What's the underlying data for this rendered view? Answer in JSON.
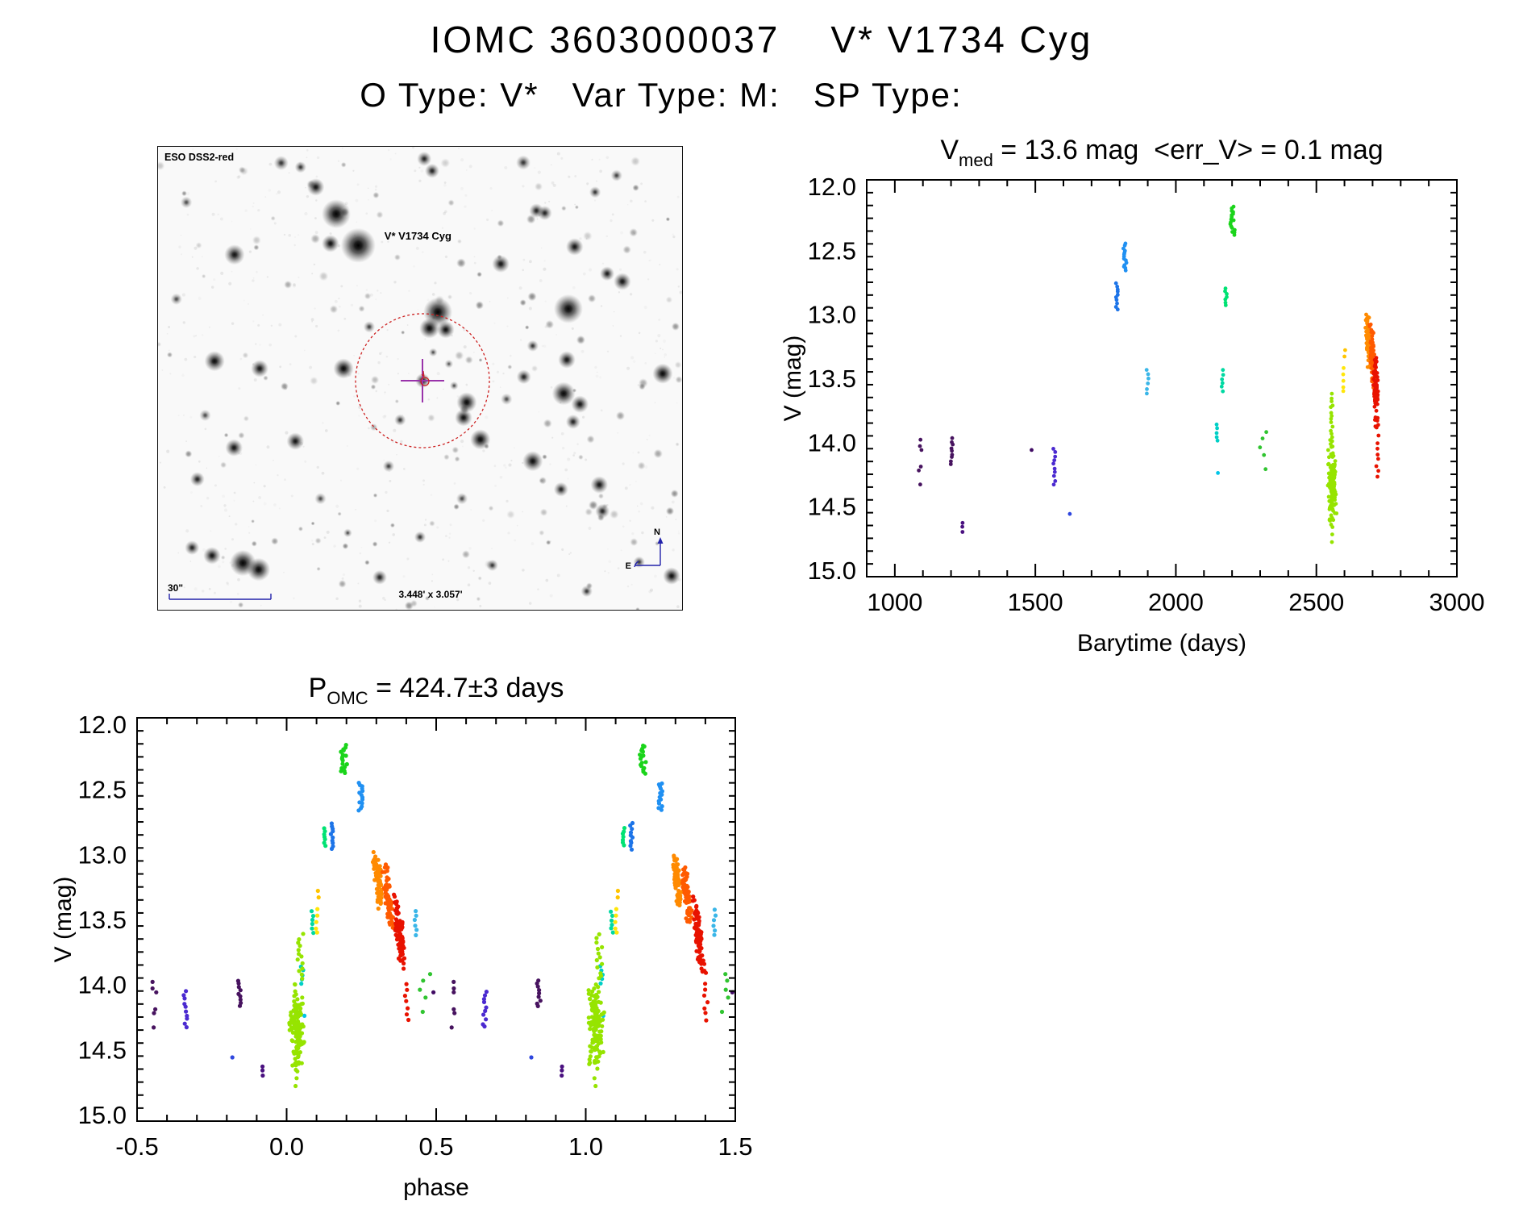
{
  "header": {
    "title": "IOMC 3603000037    V* V1734 Cyg",
    "subtitle": "O Type: V*   Var Type: M:   SP Type:"
  },
  "finder": {
    "survey_label": "ESO DSS2-red",
    "target_label": "V* V1734 Cyg",
    "scalebar_label": "30\"",
    "fov_label": "3.448' x 3.057'",
    "compass_north": "N",
    "compass_east": "E",
    "annotation_color": "#2222aa",
    "target_color": "#cc2020",
    "circle_color": "#cc2020",
    "crosshair_color": "#9933aa",
    "bright_stars": [
      [
        0.34,
        0.145,
        10,
        0.95
      ],
      [
        0.382,
        0.213,
        12,
        1
      ],
      [
        0.329,
        0.209,
        6,
        0.85
      ],
      [
        0.301,
        0.087,
        6,
        0.8
      ],
      [
        0.235,
        0.035,
        5,
        0.6
      ],
      [
        0.272,
        0.044,
        4,
        0.6
      ],
      [
        0.146,
        0.233,
        7,
        0.8
      ],
      [
        0.108,
        0.463,
        7,
        0.85
      ],
      [
        0.194,
        0.479,
        6,
        0.8
      ],
      [
        0.354,
        0.479,
        7,
        0.9
      ],
      [
        0.534,
        0.357,
        10,
        0.95
      ],
      [
        0.518,
        0.392,
        7,
        0.9
      ],
      [
        0.549,
        0.395,
        6,
        0.85
      ],
      [
        0.783,
        0.35,
        10,
        0.9
      ],
      [
        0.589,
        0.552,
        7,
        0.9
      ],
      [
        0.583,
        0.585,
        6,
        0.85
      ],
      [
        0.615,
        0.632,
        7,
        0.9
      ],
      [
        0.715,
        0.43,
        4,
        0.6
      ],
      [
        0.78,
        0.46,
        6,
        0.8
      ],
      [
        0.698,
        0.497,
        5,
        0.7
      ],
      [
        0.963,
        0.49,
        7,
        0.9
      ],
      [
        0.774,
        0.533,
        8,
        0.9
      ],
      [
        0.805,
        0.556,
        6,
        0.8
      ],
      [
        0.792,
        0.594,
        5,
        0.7
      ],
      [
        0.715,
        0.679,
        7,
        0.85
      ],
      [
        0.842,
        0.73,
        6,
        0.8
      ],
      [
        0.769,
        0.74,
        5,
        0.7
      ],
      [
        0.848,
        0.787,
        5,
        0.7
      ],
      [
        0.918,
        0.897,
        4,
        0.6
      ],
      [
        0.98,
        0.927,
        6,
        0.85
      ],
      [
        0.818,
        0.96,
        4,
        0.6
      ],
      [
        0.795,
        0.216,
        6,
        0.8
      ],
      [
        0.834,
        0.098,
        4,
        0.6
      ],
      [
        0.722,
        0.138,
        5,
        0.7
      ],
      [
        0.738,
        0.143,
        5,
        0.7
      ],
      [
        0.654,
        0.253,
        6,
        0.8
      ],
      [
        0.857,
        0.274,
        5,
        0.75
      ],
      [
        0.886,
        0.291,
        6,
        0.8
      ],
      [
        0.697,
        0.034,
        5,
        0.6
      ],
      [
        0.508,
        0.026,
        5,
        0.7
      ],
      [
        0.523,
        0.052,
        5,
        0.7
      ],
      [
        0.162,
        0.899,
        9,
        0.95
      ],
      [
        0.192,
        0.913,
        8,
        0.9
      ],
      [
        0.103,
        0.883,
        6,
        0.8
      ],
      [
        0.065,
        0.866,
        5,
        0.7
      ],
      [
        0.262,
        0.636,
        6,
        0.8
      ],
      [
        0.145,
        0.65,
        6,
        0.8
      ],
      [
        0.075,
        0.718,
        5,
        0.7
      ],
      [
        0.423,
        0.93,
        5,
        0.7
      ],
      [
        0.638,
        0.904,
        4,
        0.6
      ],
      [
        0.5,
        0.843,
        4,
        0.6
      ],
      [
        0.362,
        0.834,
        3,
        0.5
      ],
      [
        0.505,
        0.505,
        5,
        0.8
      ],
      [
        0.525,
        0.444,
        3,
        0.5
      ],
      [
        0.555,
        0.469,
        3,
        0.45
      ],
      [
        0.462,
        0.59,
        4,
        0.6
      ],
      [
        0.565,
        0.516,
        3,
        0.5
      ],
      [
        0.054,
        0.12,
        4,
        0.5
      ],
      [
        0.035,
        0.329,
        4,
        0.5
      ],
      [
        0.403,
        0.389,
        4,
        0.55
      ],
      [
        0.875,
        0.062,
        4,
        0.55
      ],
      [
        0.665,
        0.545,
        4,
        0.5
      ],
      [
        0.44,
        0.69,
        4,
        0.55
      ],
      [
        0.58,
        0.76,
        4,
        0.5
      ],
      [
        0.31,
        0.76,
        4,
        0.5
      ],
      [
        0.09,
        0.58,
        4,
        0.5
      ]
    ]
  },
  "chart_data": [
    {
      "type": "scatter",
      "id": "light_curve",
      "title": {
        "lead": "V",
        "sub": "med",
        "rest": " = 13.6 mag  <err_V> = 0.1 mag"
      },
      "xlabel": "Barytime (days)",
      "ylabel": "V (mag)",
      "xlim": [
        900,
        3000
      ],
      "ylim": [
        11.95,
        15.05
      ],
      "y_axis_inverted_magnitudes": true,
      "xticks": [
        1000,
        1500,
        2000,
        2500,
        3000
      ],
      "xtick_labels": [
        "1000",
        "1500",
        "2000",
        "2500",
        "3000"
      ],
      "yticks": [
        12.0,
        12.5,
        13.0,
        13.5,
        14.0,
        14.5,
        15.0
      ],
      "ytick_labels": [
        "12.0",
        "12.5",
        "13.0",
        "13.5",
        "14.0",
        "14.5",
        "15.0"
      ],
      "x_minor_step": 100,
      "y_minor_step": 0.1,
      "grid": false,
      "legend": "none",
      "series_key": "epochs",
      "x_field": "time"
    },
    {
      "type": "scatter",
      "id": "phase_curve",
      "title": {
        "lead": "P",
        "sub": "OMC",
        "rest": " = 424.7±3 days"
      },
      "xlabel": "phase",
      "ylabel": "V (mag)",
      "xlim": [
        -0.5,
        1.5
      ],
      "ylim": [
        11.95,
        15.05
      ],
      "y_axis_inverted_magnitudes": true,
      "xticks": [
        -0.5,
        0.0,
        0.5,
        1.0,
        1.5
      ],
      "xtick_labels": [
        "-0.5",
        "0.0",
        "0.5",
        "1.0",
        "1.5"
      ],
      "yticks": [
        12.0,
        12.5,
        13.0,
        13.5,
        14.0,
        14.5,
        15.0
      ],
      "ytick_labels": [
        "12.0",
        "12.5",
        "13.0",
        "13.5",
        "14.0",
        "14.5",
        "15.0"
      ],
      "x_minor_step": 0.1,
      "y_minor_step": 0.1,
      "grid": false,
      "legend": "none",
      "series_key": "epochs",
      "x_field": "phase",
      "phase_copies": [
        -1,
        0,
        1
      ]
    }
  ],
  "epochs": [
    {
      "time": 1090,
      "phase": 0.558,
      "color": "#47135f",
      "mags": [
        13.98,
        14.03,
        14.06,
        14.19,
        14.22,
        14.33
      ],
      "tw": 14,
      "pw": 0.02
    },
    {
      "time": 1203,
      "phase": 0.843,
      "color": "#47135f",
      "range": [
        13.97,
        14.17
      ],
      "n": 9,
      "tw": 8,
      "pw": 0.012
    },
    {
      "time": 1242,
      "phase": 0.922,
      "color": "#4a1180",
      "mags": [
        14.63,
        14.66,
        14.7
      ],
      "tw": 4,
      "pw": 0.007
    },
    {
      "time": 1486,
      "phase": 0.49,
      "color": "#400b63",
      "mags": [
        14.06
      ],
      "tw": 2,
      "pw": 0.004
    },
    {
      "time": 1568,
      "phase": 0.662,
      "color": "#4b2ad0",
      "range": [
        14.05,
        14.33
      ],
      "n": 10,
      "tw": 8,
      "pw": 0.013
    },
    {
      "time": 1623,
      "phase": 0.818,
      "color": "#2e46de",
      "mags": [
        14.56
      ],
      "tw": 2,
      "pw": 0.004
    },
    {
      "time": 1790,
      "phase": 0.152,
      "color": "#1d74e8",
      "range": [
        12.76,
        12.96
      ],
      "n": 10,
      "tw": 7,
      "pw": 0.011
    },
    {
      "time": 1818,
      "phase": 0.248,
      "color": "#2090f2",
      "range": [
        12.45,
        12.66
      ],
      "n": 14,
      "tw": 12,
      "pw": 0.016
    },
    {
      "time": 1899,
      "phase": 0.43,
      "color": "#3ab6e8",
      "range": [
        13.43,
        13.62
      ],
      "n": 6,
      "tw": 7,
      "pw": 0.01
    },
    {
      "time": 2146,
      "phase": 0.052,
      "color": "#00cfc6",
      "range": [
        13.86,
        13.99
      ],
      "n": 5,
      "tw": 6,
      "pw": 0.009
    },
    {
      "time": 2150,
      "phase": 0.06,
      "color": "#00c5e8",
      "mags": [
        14.24
      ],
      "tw": 2,
      "pw": 0.004
    },
    {
      "time": 2166,
      "phase": 0.088,
      "color": "#00d9a2",
      "range": [
        13.44,
        13.6
      ],
      "n": 6,
      "tw": 6,
      "pw": 0.009
    },
    {
      "time": 2178,
      "phase": 0.128,
      "color": "#00e273",
      "range": [
        12.8,
        12.93
      ],
      "n": 7,
      "tw": 6,
      "pw": 0.009
    },
    {
      "time": 2202,
      "phase": 0.19,
      "color": "#1bd41b",
      "range": [
        12.16,
        12.38
      ],
      "n": 17,
      "tw": 18,
      "pw": 0.025
    },
    {
      "time": 2310,
      "phase": 0.462,
      "color": "#30c430",
      "mags": [
        13.92,
        13.97,
        14.04,
        14.1,
        14.21
      ],
      "tw": 30,
      "pw": 0.04
    },
    {
      "time": 2556,
      "phase": 0.035,
      "color": "#96e400",
      "range": [
        13.97,
        14.68
      ],
      "n": 130,
      "tw": 30,
      "pw": 0.05,
      "dense": true
    },
    {
      "time": 2554,
      "phase": 0.046,
      "color": "#96e400",
      "range": [
        13.62,
        13.96
      ],
      "n": 13,
      "tw": 10,
      "pw": 0.02
    },
    {
      "time": 2556,
      "phase": 0.032,
      "color": "#96e400",
      "mags": [
        14.72,
        14.78
      ],
      "tw": 6,
      "pw": 0.01
    },
    {
      "time": 2601,
      "phase": 0.107,
      "color": "#ffc400",
      "mags": [
        13.28,
        13.33
      ],
      "tw": 3,
      "pw": 0.005
    },
    {
      "time": 2597,
      "phase": 0.101,
      "color": "#ffe60a",
      "mags": [
        13.42,
        13.47,
        13.52,
        13.57,
        13.6
      ],
      "tw": 3,
      "pw": 0.006
    },
    {
      "time": 2684,
      "phase": 0.307,
      "color": "#ff8a00",
      "range": [
        12.94,
        13.46
      ],
      "n": 75,
      "tw": 16,
      "pw": 0.024,
      "slant_t": 14,
      "slant_p": 0.024,
      "dense": true
    },
    {
      "time": 2699,
      "phase": 0.34,
      "color": "#ff5a00",
      "range": [
        13.05,
        13.62
      ],
      "n": 60,
      "tw": 16,
      "pw": 0.024,
      "slant_t": 12,
      "slant_p": 0.024,
      "dense": true
    },
    {
      "time": 2712,
      "phase": 0.378,
      "color": "#e81200",
      "range": [
        13.28,
        13.97
      ],
      "n": 90,
      "tw": 16,
      "pw": 0.026,
      "slant_t": 12,
      "slant_p": 0.03,
      "dense": true
    },
    {
      "time": 2717,
      "phase": 0.402,
      "color": "#e81200",
      "range": [
        14.0,
        14.27
      ],
      "n": 7,
      "tw": 8,
      "pw": 0.014
    }
  ]
}
